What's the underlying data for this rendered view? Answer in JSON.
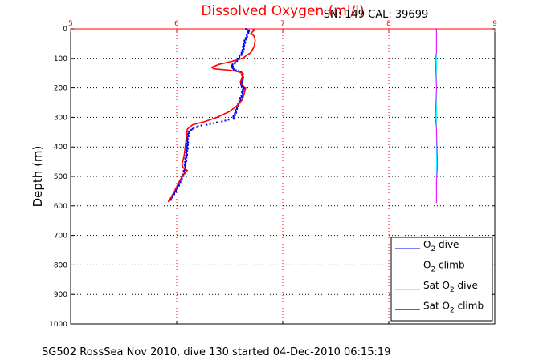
{
  "chart_data": {
    "type": "line",
    "title": "Dissolved Oxygen (ml/l)",
    "subtitle": "SN: 149  CAL: 39699",
    "ylabel": "Depth (m)",
    "xlabel": "",
    "caption": "SG502 RossSea Nov 2010, dive 130 started 04-Dec-2010 06:15:19",
    "xlim": [
      5,
      9
    ],
    "ylim": [
      0,
      1000
    ],
    "y_reversed": true,
    "x_axis_position": "top",
    "grid": true,
    "xticks": [
      "5",
      "6",
      "7",
      "8",
      "9"
    ],
    "yticks": [
      "0",
      "100",
      "200",
      "300",
      "400",
      "500",
      "600",
      "700",
      "800",
      "900",
      "1000"
    ],
    "colors": {
      "title": "#ff0000",
      "x_axis": "#ff0000",
      "o2_dive": "#0000ff",
      "o2_climb": "#ff0000",
      "sat_dive": "#00ffff",
      "sat_climb": "#ff00ff"
    },
    "legend": {
      "placement": "bottom-right",
      "entries": [
        {
          "base": "O",
          "sub": "2",
          "rest": " dive",
          "series": "o2_dive"
        },
        {
          "base": "O",
          "sub": "2",
          "rest": " climb",
          "series": "o2_climb"
        },
        {
          "base": "Sat O",
          "sub": "2",
          "rest": " dive",
          "series": "sat_dive"
        },
        {
          "base": "Sat O",
          "sub": "2",
          "rest": " climb",
          "series": "sat_climb"
        }
      ]
    },
    "series": [
      {
        "key": "o2_dive",
        "style": "dots",
        "points": [
          [
            6.66,
            0
          ],
          [
            6.68,
            10
          ],
          [
            6.66,
            25
          ],
          [
            6.64,
            45
          ],
          [
            6.63,
            60
          ],
          [
            6.62,
            80
          ],
          [
            6.58,
            100
          ],
          [
            6.55,
            115
          ],
          [
            6.52,
            125
          ],
          [
            6.53,
            135
          ],
          [
            6.56,
            140
          ],
          [
            6.6,
            145
          ],
          [
            6.62,
            150
          ],
          [
            6.62,
            170
          ],
          [
            6.61,
            190
          ],
          [
            6.63,
            200
          ],
          [
            6.62,
            220
          ],
          [
            6.6,
            240
          ],
          [
            6.58,
            260
          ],
          [
            6.56,
            275
          ],
          [
            6.55,
            290
          ],
          [
            6.53,
            305
          ],
          [
            6.35,
            320
          ],
          [
            6.2,
            330
          ],
          [
            6.12,
            345
          ],
          [
            6.1,
            370
          ],
          [
            6.1,
            400
          ],
          [
            6.09,
            430
          ],
          [
            6.08,
            460
          ],
          [
            6.07,
            490
          ],
          [
            6.03,
            520
          ],
          [
            5.99,
            550
          ],
          [
            5.95,
            575
          ],
          [
            5.93,
            585
          ]
        ]
      },
      {
        "key": "o2_climb",
        "style": "line",
        "points": [
          [
            6.72,
            0
          ],
          [
            6.73,
            5
          ],
          [
            6.7,
            15
          ],
          [
            6.73,
            25
          ],
          [
            6.74,
            40
          ],
          [
            6.73,
            60
          ],
          [
            6.7,
            80
          ],
          [
            6.62,
            100
          ],
          [
            6.52,
            110
          ],
          [
            6.4,
            120
          ],
          [
            6.33,
            130
          ],
          [
            6.35,
            135
          ],
          [
            6.5,
            140
          ],
          [
            6.58,
            145
          ],
          [
            6.62,
            150
          ],
          [
            6.62,
            165
          ],
          [
            6.6,
            180
          ],
          [
            6.62,
            190
          ],
          [
            6.65,
            200
          ],
          [
            6.64,
            215
          ],
          [
            6.62,
            240
          ],
          [
            6.57,
            260
          ],
          [
            6.5,
            280
          ],
          [
            6.38,
            300
          ],
          [
            6.26,
            315
          ],
          [
            6.15,
            325
          ],
          [
            6.1,
            340
          ],
          [
            6.09,
            370
          ],
          [
            6.08,
            400
          ],
          [
            6.07,
            430
          ],
          [
            6.05,
            460
          ],
          [
            6.06,
            470
          ],
          [
            6.1,
            480
          ],
          [
            6.06,
            495
          ],
          [
            6.02,
            520
          ],
          [
            5.98,
            550
          ],
          [
            5.95,
            570
          ],
          [
            5.92,
            585
          ]
        ]
      },
      {
        "key": "sat_dive",
        "style": "line",
        "points": [
          [
            8.45,
            0
          ],
          [
            8.45,
            590
          ]
        ]
      },
      {
        "key": "sat_climb",
        "style": "line",
        "points": [
          [
            8.45,
            0
          ],
          [
            8.45,
            80
          ],
          [
            8.44,
            100
          ],
          [
            8.45,
            200
          ],
          [
            8.44,
            300
          ],
          [
            8.45,
            340
          ],
          [
            8.46,
            460
          ],
          [
            8.45,
            520
          ],
          [
            8.45,
            590
          ]
        ]
      }
    ]
  }
}
